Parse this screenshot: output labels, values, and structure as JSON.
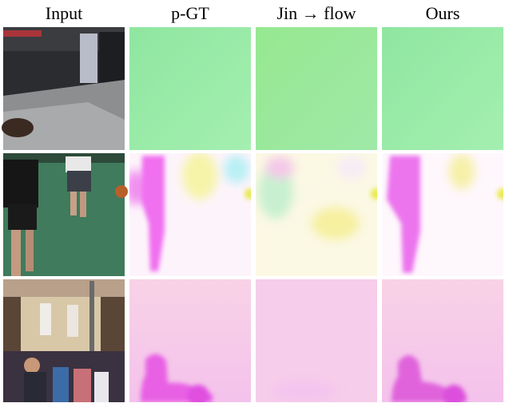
{
  "header": {
    "columns": [
      "Input",
      "p-GT",
      "Jin → flow",
      "Ours"
    ]
  }
}
